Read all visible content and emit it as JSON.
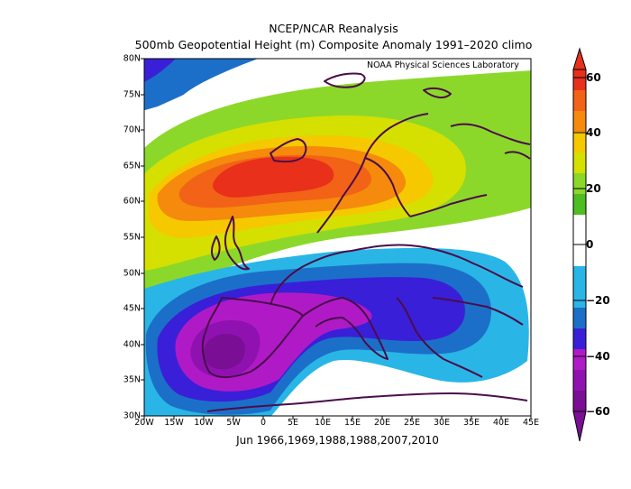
{
  "title": "NCEP/NCAR Reanalysis",
  "subtitle": "500mb Geopotential Height (m) Composite Anomaly 1991–2020 climo",
  "credit": "NOAA Physical Sciences Laboratory",
  "xlabel": "Jun 1966,1969,1988,1988,2007,2010",
  "x_ticks": [
    "20W",
    "15W",
    "10W",
    "5W",
    "0",
    "5E",
    "10E",
    "15E",
    "20E",
    "25E",
    "30E",
    "35E",
    "40E",
    "45E"
  ],
  "y_ticks": [
    "80N",
    "75N",
    "70N",
    "65N",
    "60N",
    "55N",
    "50N",
    "45N",
    "40N",
    "35N",
    "30N"
  ],
  "colorbar": {
    "labels": [
      "60",
      "40",
      "20",
      "0",
      "−20",
      "−40",
      "−60"
    ],
    "colors": [
      "#e8301a",
      "#f58a0c",
      "#f5c800",
      "#d5e000",
      "#8cd82a",
      "#4dbd22",
      "#ffffff",
      "#29b6e6",
      "#1c6fc8",
      "#3a1fd8",
      "#b01ac6",
      "#7a0e94"
    ]
  },
  "map": {
    "type": "contour-fill",
    "region": "Europe",
    "lon_range": [
      -20,
      45
    ],
    "lat_range": [
      30,
      80
    ],
    "positive_center": "Norwegian Sea / Scandinavia (about 65N, 2E), exceeds +60 m",
    "negative_center": "Iberian Peninsula (about 39N, 6W), below −60 m",
    "land_outline_color": "#4a0d4a"
  }
}
